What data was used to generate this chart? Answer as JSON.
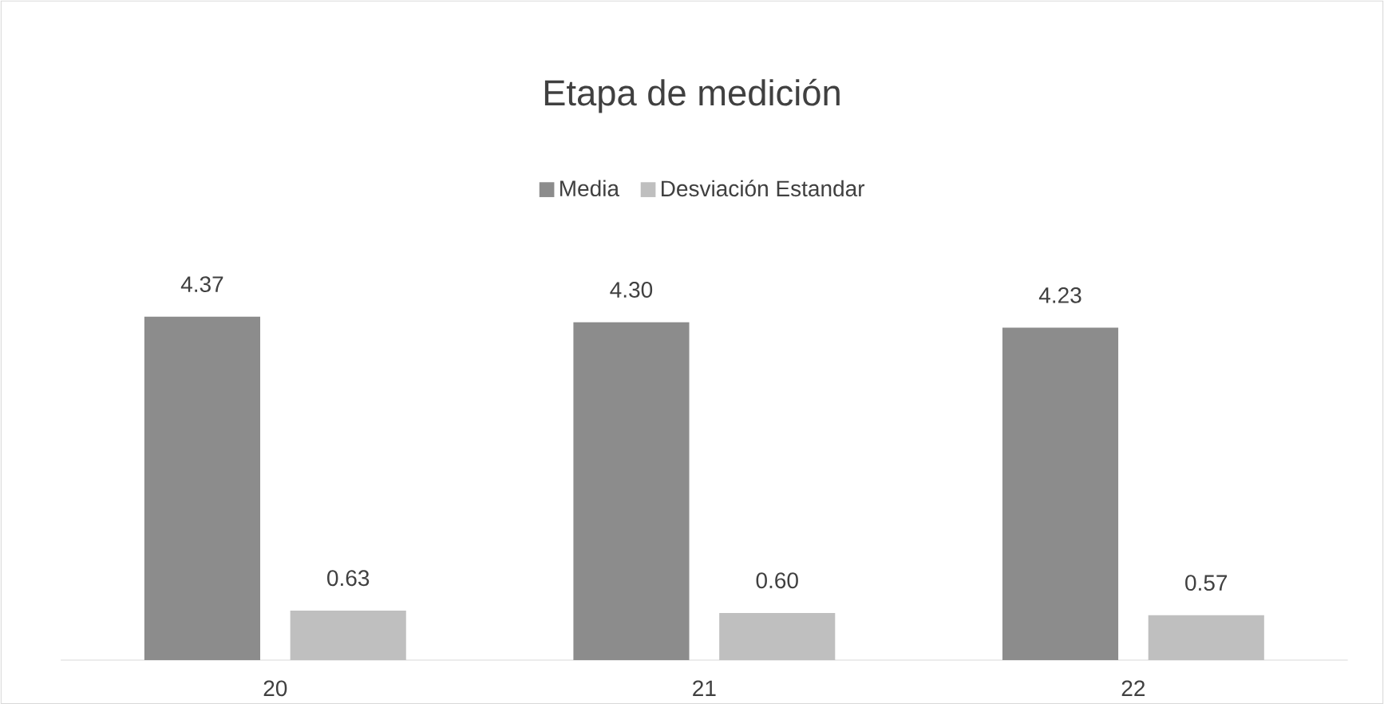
{
  "chart_data": {
    "type": "bar",
    "title": "Etapa de medición",
    "categories": [
      "20",
      "21",
      "22"
    ],
    "series": [
      {
        "name": "Media",
        "color": "#8c8c8c",
        "values": [
          4.37,
          4.3,
          4.23
        ],
        "value_labels": [
          "4.37",
          "4.30",
          "4.23"
        ]
      },
      {
        "name": "Desviación Estandar",
        "color": "#bfbfbf",
        "values": [
          0.63,
          0.6,
          0.57
        ],
        "value_labels": [
          "0.63",
          "0.60",
          "0.57"
        ]
      }
    ],
    "legend": "top"
  }
}
